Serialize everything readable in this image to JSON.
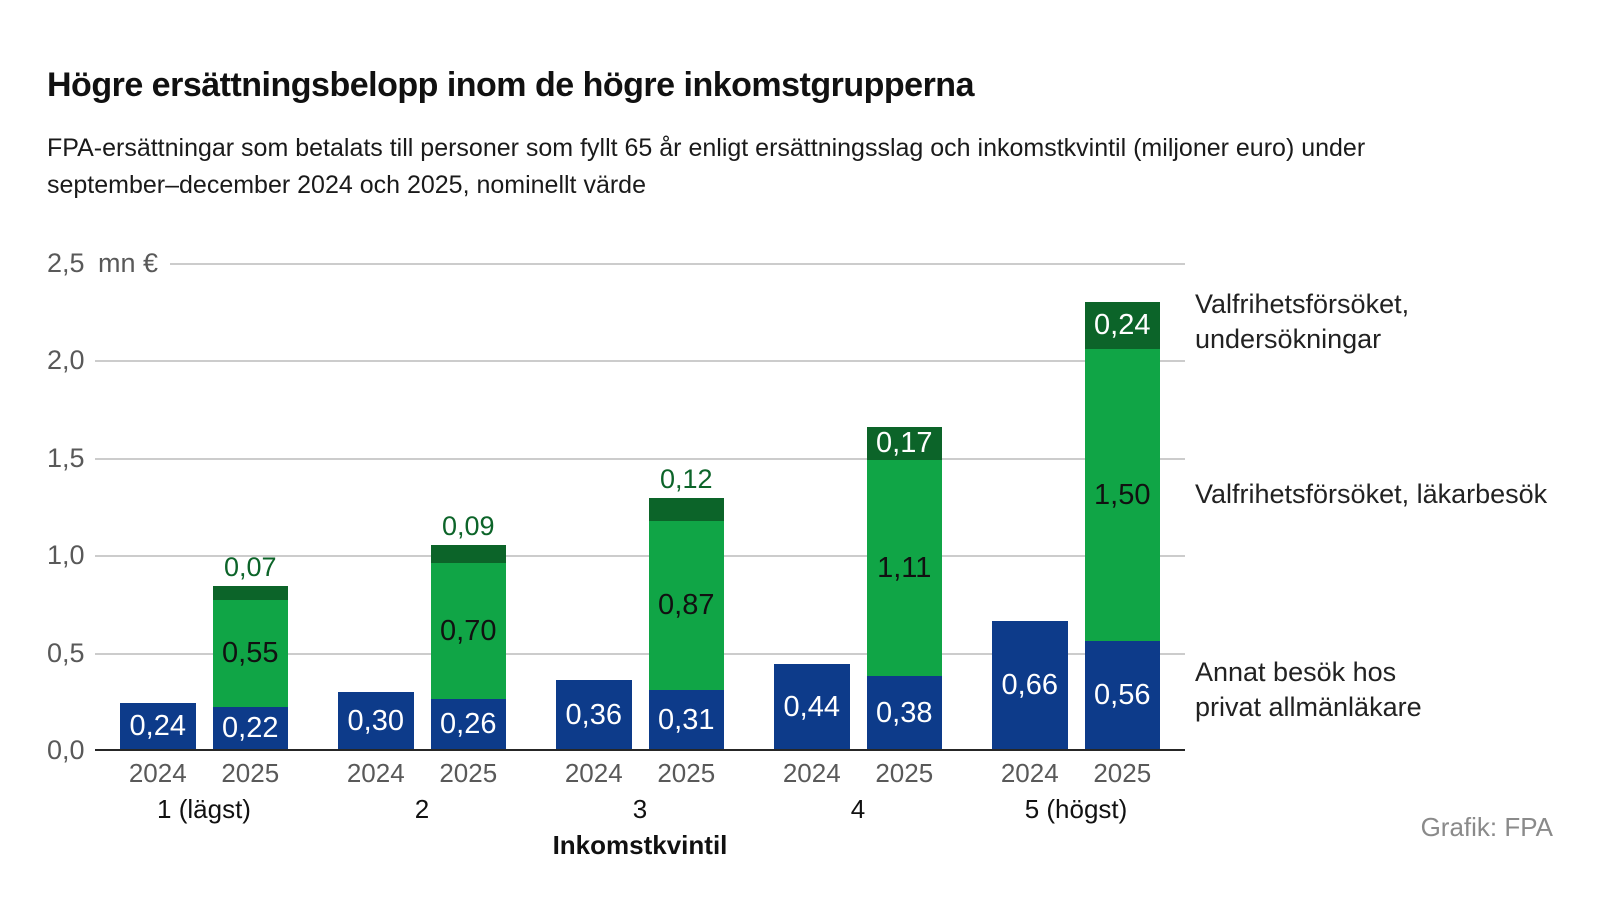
{
  "title": "Högre ersättningsbelopp inom de högre inkomstgrupperna",
  "subtitle_line1": "FPA-ersättningar som betalats till personer som fyllt 65 år enligt ersättningsslag och inkomstkvintil (miljoner euro) under",
  "subtitle_line2": "september–december 2024 och 2025, nominellt värde",
  "credit": "Grafik: FPA",
  "colors": {
    "blue": "#0d3b8a",
    "green": "#10a546",
    "dark_green": "#0c6429",
    "grid": "#cccccc",
    "axis": "#262626",
    "tick_text": "#595959"
  },
  "y_axis": {
    "unit": "mn €",
    "ticks": [
      "2,5",
      "2,0",
      "1,5",
      "1,0",
      "0,5",
      "0,0"
    ],
    "max": 2.5,
    "min": 0
  },
  "x_axis": {
    "title": "Inkomstkvintil",
    "group_labels": [
      "1 (lägst)",
      "2",
      "3",
      "4",
      "5 (högst)"
    ],
    "year_labels": [
      "2024",
      "2025"
    ]
  },
  "legend": [
    {
      "lines": [
        "Valfrihetsförsöket,",
        "undersökningar"
      ],
      "series": "Valfrihetsförsöket, undersökningar"
    },
    {
      "lines": [
        "Valfrihetsförsöket, läkarbesök"
      ],
      "series": "Valfrihetsförsöket, läkarbesök"
    },
    {
      "lines": [
        "Annat besök hos",
        "privat allmänläkare"
      ],
      "series": "Annat besök hos privat allmänläkare"
    }
  ],
  "chart_data": {
    "type": "bar",
    "stacked": true,
    "title": "Högre ersättningsbelopp inom de högre inkomstgrupperna",
    "ylabel": "mn €",
    "xlabel": "Inkomstkvintil",
    "ylim": [
      0,
      2.5
    ],
    "grid": true,
    "legend_position": "right",
    "series_names": [
      "Annat besök hos privat allmänläkare",
      "Valfrihetsförsöket, läkarbesök",
      "Valfrihetsförsöket, undersökningar"
    ],
    "groups": [
      {
        "label": "1 (lägst)",
        "bars": [
          {
            "year": "2024",
            "segments": [
              {
                "series": "Annat besök hos privat allmänläkare",
                "value": 0.24,
                "label": "0,24",
                "label_pos": "inside"
              }
            ]
          },
          {
            "year": "2025",
            "segments": [
              {
                "series": "Annat besök hos privat allmänläkare",
                "value": 0.22,
                "label": "0,22",
                "label_pos": "inside"
              },
              {
                "series": "Valfrihetsförsöket, läkarbesök",
                "value": 0.55,
                "label": "0,55",
                "label_pos": "inside"
              },
              {
                "series": "Valfrihetsförsöket, undersökningar",
                "value": 0.07,
                "label": "0,07",
                "label_pos": "above"
              }
            ]
          }
        ]
      },
      {
        "label": "2",
        "bars": [
          {
            "year": "2024",
            "segments": [
              {
                "series": "Annat besök hos privat allmänläkare",
                "value": 0.3,
                "label": "0,30",
                "label_pos": "inside"
              }
            ]
          },
          {
            "year": "2025",
            "segments": [
              {
                "series": "Annat besök hos privat allmänläkare",
                "value": 0.26,
                "label": "0,26",
                "label_pos": "inside"
              },
              {
                "series": "Valfrihetsförsöket, läkarbesök",
                "value": 0.7,
                "label": "0,70",
                "label_pos": "inside"
              },
              {
                "series": "Valfrihetsförsöket, undersökningar",
                "value": 0.09,
                "label": "0,09",
                "label_pos": "above"
              }
            ]
          }
        ]
      },
      {
        "label": "3",
        "bars": [
          {
            "year": "2024",
            "segments": [
              {
                "series": "Annat besök hos privat allmänläkare",
                "value": 0.36,
                "label": "0,36",
                "label_pos": "inside"
              }
            ]
          },
          {
            "year": "2025",
            "segments": [
              {
                "series": "Annat besök hos privat allmänläkare",
                "value": 0.31,
                "label": "0,31",
                "label_pos": "inside"
              },
              {
                "series": "Valfrihetsförsöket, läkarbesök",
                "value": 0.87,
                "label": "0,87",
                "label_pos": "inside"
              },
              {
                "series": "Valfrihetsförsöket, undersökningar",
                "value": 0.12,
                "label": "0,12",
                "label_pos": "above"
              }
            ]
          }
        ]
      },
      {
        "label": "4",
        "bars": [
          {
            "year": "2024",
            "segments": [
              {
                "series": "Annat besök hos privat allmänläkare",
                "value": 0.44,
                "label": "0,44",
                "label_pos": "inside"
              }
            ]
          },
          {
            "year": "2025",
            "segments": [
              {
                "series": "Annat besök hos privat allmänläkare",
                "value": 0.38,
                "label": "0,38",
                "label_pos": "inside"
              },
              {
                "series": "Valfrihetsförsöket, läkarbesök",
                "value": 1.11,
                "label": "1,11",
                "label_pos": "inside"
              },
              {
                "series": "Valfrihetsförsöket, undersökningar",
                "value": 0.17,
                "label": "0,17",
                "label_pos": "inside"
              }
            ]
          }
        ]
      },
      {
        "label": "5 (högst)",
        "bars": [
          {
            "year": "2024",
            "segments": [
              {
                "series": "Annat besök hos privat allmänläkare",
                "value": 0.66,
                "label": "0,66",
                "label_pos": "inside"
              }
            ]
          },
          {
            "year": "2025",
            "segments": [
              {
                "series": "Annat besök hos privat allmänläkare",
                "value": 0.56,
                "label": "0,56",
                "label_pos": "inside"
              },
              {
                "series": "Valfrihetsförsöket, läkarbesök",
                "value": 1.5,
                "label": "1,50",
                "label_pos": "inside"
              },
              {
                "series": "Valfrihetsförsöket, undersökningar",
                "value": 0.24,
                "label": "0,24",
                "label_pos": "inside"
              }
            ]
          }
        ]
      }
    ]
  }
}
